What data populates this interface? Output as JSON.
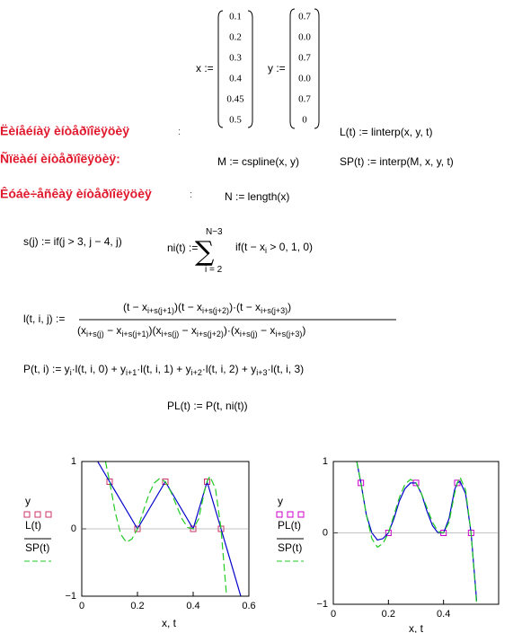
{
  "vectors": [
    {
      "name": "x :=",
      "values": [
        "0.1",
        "0.2",
        "0.3",
        "0.4",
        "0.45",
        "0.5"
      ]
    },
    {
      "name": "y :=",
      "values": [
        "0.7",
        "0.0",
        "0.7",
        "0.0",
        "0.7",
        "0"
      ]
    }
  ],
  "headings": [
    {
      "text": "Ëèíåéíàÿ èíòåðïîëÿöèÿ",
      "colon": ":"
    },
    {
      "text": "Ñïëàéí èíòåðïîëÿöèÿ:"
    },
    {
      "text": "Êóáè÷åñêàÿ èíòåðïîëÿöèÿ",
      "colon": ":"
    }
  ],
  "formulas": [
    [
      "L(t) := linterp(x, y, t)"
    ],
    [
      "M := cspline(x, y)"
    ],
    [
      "SP(t) := interp(M, x, y, t)"
    ],
    [
      "N := length(x)"
    ],
    [
      "s(j) := if(j > 3, j − 4, j)"
    ],
    [
      "ni(t) :="
    ],
    [
      "N−3"
    ],
    [
      "∑"
    ],
    [
      "i = 2"
    ],
    [
      "if(t − x",
      "i",
      " > 0, 1, 0)"
    ],
    [
      "l(t, i, j) :="
    ],
    [
      "(t − x",
      "i+s(j+1)",
      ")(t − x",
      "i+s(j+2)",
      ")·(t − x",
      "i+s(j+3)",
      ")"
    ],
    [
      "(x",
      "i+s(j)",
      " − x",
      "i+s(j+1)",
      ")(x",
      "i+s(j)",
      " − x",
      "i+s(j+2)",
      ")·(x",
      "i+s(j)",
      " − x",
      "i+s(j+3)",
      ")"
    ],
    [
      "P(t, i) := y",
      "i",
      "·l(t, i, 0) + y",
      "i+1",
      "·l(t, i, 1) + y",
      "i+2",
      "·l(t, i, 2) + y",
      "i+3",
      "·l(t, i, 3)"
    ],
    [
      "PL(t) := P(t, ni(t))"
    ]
  ],
  "chart_data": [
    {
      "type": "line",
      "xlabel": "x, t",
      "xlim": [
        0,
        0.6
      ],
      "ylim": [
        -1,
        1
      ],
      "xticks": [
        0,
        0.2,
        0.4,
        0.6
      ],
      "yticks": [
        {
          "value": -1,
          "label": "−1"
        },
        0,
        1
      ],
      "series": [
        {
          "name": "y",
          "color": "#cc3366",
          "mark": "square",
          "x": [
            0.1,
            0.2,
            0.3,
            0.4,
            0.45,
            0.5
          ],
          "values": [
            0.7,
            0,
            0.7,
            0,
            0.7,
            0
          ]
        },
        {
          "name": "L(t)",
          "color": "#0000cc",
          "mark": "solid",
          "x": [
            0.057,
            0.1,
            0.2,
            0.3,
            0.4,
            0.45,
            0.5,
            0.571
          ],
          "values": [
            1,
            0.7,
            0,
            0.7,
            0,
            0.7,
            0,
            -1
          ]
        },
        {
          "name": "SP(t)",
          "color": "#22cc22",
          "mark": "dash",
          "x": [
            0.085,
            0.1,
            0.12,
            0.14,
            0.16,
            0.18,
            0.2,
            0.22,
            0.24,
            0.26,
            0.28,
            0.3,
            0.32,
            0.34,
            0.36,
            0.38,
            0.4,
            0.42,
            0.44,
            0.45,
            0.46,
            0.48,
            0.5,
            0.52
          ],
          "values": [
            1,
            0.7,
            0.25,
            -0.08,
            -0.2,
            -0.15,
            0,
            0.25,
            0.5,
            0.68,
            0.75,
            0.7,
            0.55,
            0.35,
            0.15,
            0.02,
            0,
            0.15,
            0.55,
            0.7,
            0.78,
            0.6,
            0,
            -1
          ]
        }
      ]
    },
    {
      "type": "line",
      "xlabel": "x, t",
      "xlim": [
        0,
        0.6
      ],
      "ylim": [
        -1,
        1
      ],
      "xticks": [
        0,
        0.2,
        0.4
      ],
      "yticks": [
        {
          "value": -1,
          "label": "−1"
        },
        0,
        1
      ],
      "series": [
        {
          "name": "y",
          "color": "#cc00cc",
          "mark": "square",
          "x": [
            0.1,
            0.2,
            0.3,
            0.4,
            0.45,
            0.5
          ],
          "values": [
            0.7,
            0,
            0.7,
            0,
            0.7,
            0
          ]
        },
        {
          "name": "PL(t)",
          "color": "#0000cc",
          "mark": "solid",
          "x": [
            0.085,
            0.1,
            0.12,
            0.14,
            0.16,
            0.18,
            0.2,
            0.22,
            0.24,
            0.26,
            0.28,
            0.3,
            0.32,
            0.34,
            0.36,
            0.38,
            0.4,
            0.42,
            0.44,
            0.45,
            0.46,
            0.48,
            0.5,
            0.52
          ],
          "values": [
            1,
            0.7,
            0.25,
            0,
            -0.1,
            -0.08,
            0,
            0.2,
            0.45,
            0.62,
            0.7,
            0.7,
            0.55,
            0.3,
            0.1,
            0,
            0,
            0.2,
            0.6,
            0.7,
            0.72,
            0.55,
            0,
            -0.95
          ]
        },
        {
          "name": "SP(t)",
          "color": "#22cc22",
          "mark": "dash",
          "x": [
            0.085,
            0.1,
            0.12,
            0.14,
            0.16,
            0.18,
            0.2,
            0.22,
            0.24,
            0.26,
            0.28,
            0.3,
            0.32,
            0.34,
            0.36,
            0.38,
            0.4,
            0.42,
            0.44,
            0.45,
            0.46,
            0.48,
            0.5,
            0.52
          ],
          "values": [
            1,
            0.7,
            0.25,
            -0.08,
            -0.2,
            -0.15,
            0,
            0.25,
            0.5,
            0.68,
            0.75,
            0.7,
            0.55,
            0.35,
            0.15,
            0.02,
            0,
            0.15,
            0.55,
            0.7,
            0.78,
            0.6,
            0,
            -1
          ]
        }
      ]
    }
  ]
}
